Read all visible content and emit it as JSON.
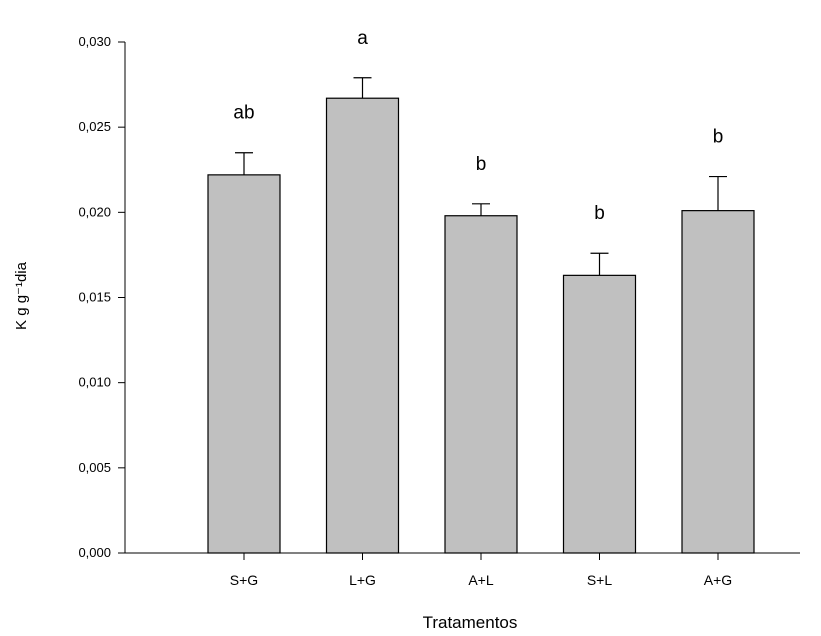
{
  "chart_data": {
    "type": "bar",
    "title": "",
    "xlabel": "Tratamentos",
    "ylabel": "K g g⁻¹dia",
    "categories": [
      "S+G",
      "L+G",
      "A+L",
      "S+L",
      "A+G"
    ],
    "values": [
      0.0222,
      0.0267,
      0.0198,
      0.0163,
      0.0201
    ],
    "errors": [
      0.0013,
      0.0012,
      0.0007,
      0.0013,
      0.002
    ],
    "significance_letters": [
      "ab",
      "a",
      "b",
      "b",
      "b"
    ],
    "ylim": [
      0,
      0.03
    ],
    "yticks": [
      0.0,
      0.005,
      0.01,
      0.015,
      0.02,
      0.025,
      0.03
    ],
    "ytick_labels": [
      "0,000",
      "0,005",
      "0,010",
      "0,015",
      "0,020",
      "0,025",
      "0,030"
    ],
    "grid": false,
    "legend": "none",
    "colors": {
      "bar_fill": "#c0c0c0",
      "bar_stroke": "#000000",
      "axis": "#000000"
    }
  }
}
